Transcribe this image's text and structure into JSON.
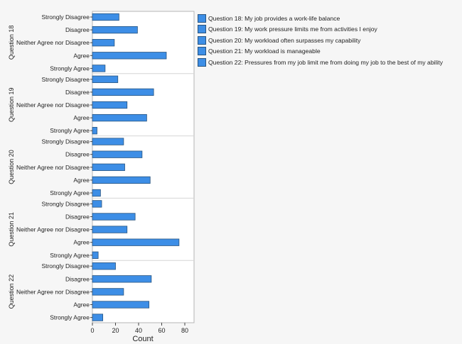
{
  "chart_data": {
    "type": "bar",
    "orientation": "horizontal",
    "xlabel": "Count",
    "xlim": [
      0,
      88
    ],
    "xticks": [
      0,
      20,
      40,
      60,
      80
    ],
    "categories": [
      "Strongly Disagree",
      "Disagree",
      "Neither Agree nor Disagree",
      "Agree",
      "Strongly Agree"
    ],
    "panels": [
      {
        "name": "Question 18",
        "values": [
          23,
          39,
          19,
          64,
          11
        ]
      },
      {
        "name": "Question 19",
        "values": [
          22,
          53,
          30,
          47,
          4
        ]
      },
      {
        "name": "Question 20",
        "values": [
          27,
          43,
          28,
          50,
          7
        ]
      },
      {
        "name": "Question 21",
        "values": [
          8,
          37,
          30,
          75,
          5
        ]
      },
      {
        "name": "Question 22",
        "values": [
          20,
          51,
          27,
          49,
          9
        ]
      }
    ],
    "legend": {
      "placement": "top-right",
      "entries": [
        "Question 18: My job provides a work-life balance",
        "Question 19: My work pressure limits me from activities I enjoy",
        "Question 20: My workload often surpasses my capability",
        "Question 21: My workload is manageable",
        "Question 22: Pressures from my job limit me from doing my job to the best of my ability"
      ]
    },
    "colors": {
      "bar": "#3d8ee6",
      "bar_outline": "#28547f",
      "frame": "#b5b5b5"
    },
    "grid": false
  }
}
